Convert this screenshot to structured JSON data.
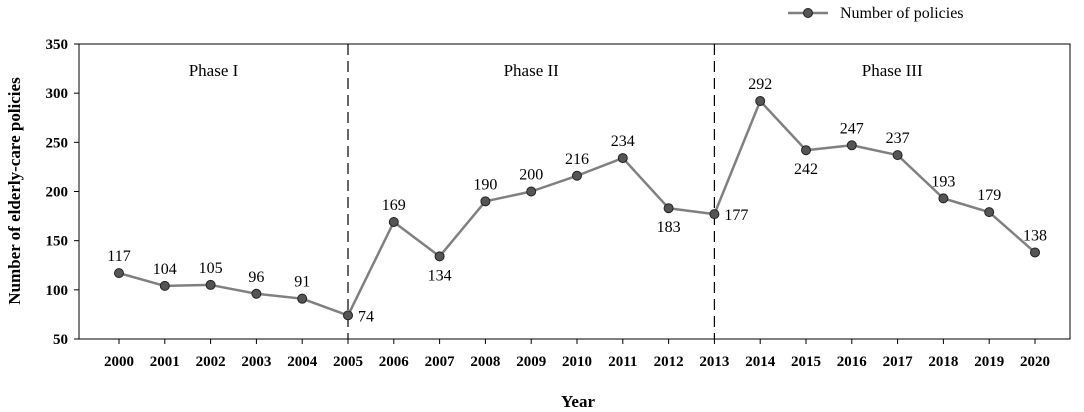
{
  "chart_data": {
    "type": "line",
    "xlabel": "Year",
    "ylabel": "Number of elderly-care policies",
    "ylim": [
      50,
      350
    ],
    "yticks": [
      50,
      100,
      150,
      200,
      250,
      300,
      350
    ],
    "categories": [
      "2000",
      "2001",
      "2002",
      "2003",
      "2004",
      "2005",
      "2006",
      "2007",
      "2008",
      "2009",
      "2010",
      "2011",
      "2012",
      "2013",
      "2014",
      "2015",
      "2016",
      "2017",
      "2018",
      "2019",
      "2020"
    ],
    "series": [
      {
        "name": "Number of policies",
        "values": [
          117,
          104,
          105,
          96,
          91,
          74,
          169,
          134,
          190,
          200,
          216,
          234,
          183,
          177,
          292,
          242,
          247,
          237,
          193,
          179,
          138
        ],
        "color": "#808080",
        "marker_color": "#555555"
      }
    ],
    "label_positions": [
      "above",
      "above",
      "above",
      "above",
      "above",
      "right",
      "above",
      "below",
      "above",
      "above",
      "above",
      "above",
      "below",
      "right",
      "above",
      "below",
      "above",
      "above",
      "above",
      "above",
      "above"
    ],
    "phase_dividers": [
      "2005",
      "2013"
    ],
    "phases": [
      "Phase I",
      "Phase II",
      "Phase III"
    ],
    "grid": false,
    "legend_position": "top-right"
  }
}
